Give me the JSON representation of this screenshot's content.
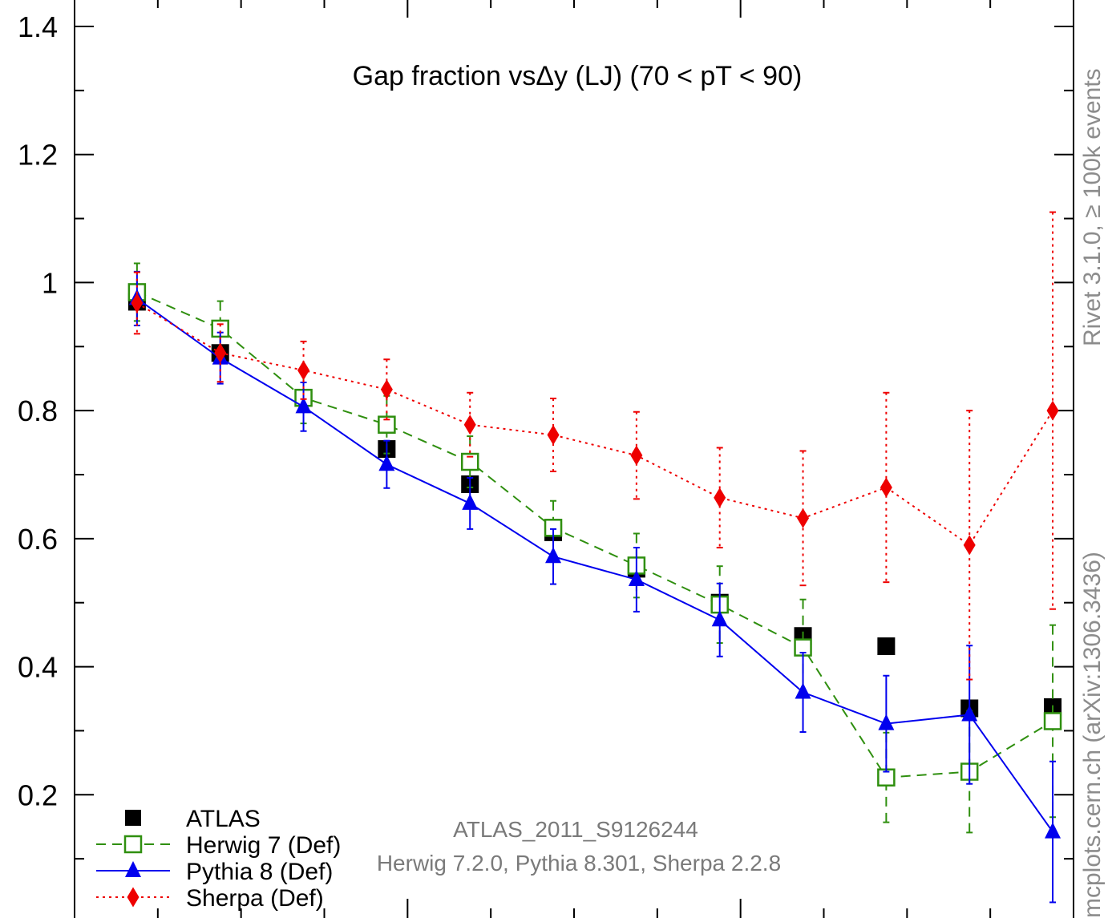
{
  "side_labels": {
    "rivet": "Rivet 3.1.0, ≥ 100k events",
    "mcplots": "mcplots.cern.ch (arXiv:1306.3436)"
  },
  "footer": {
    "analysis": "ATLAS_2011_S9126244",
    "generators": "Herwig 7.2.0, Pythia 8.301, Sherpa 2.2.8"
  },
  "chart_data": {
    "type": "scatter",
    "title": "Gap fraction vsΔy (LJ) (70 < pT <  90)",
    "xlabel": "",
    "ylabel": "",
    "xlim": [
      0,
      12
    ],
    "ylim": [
      0,
      1.4
    ],
    "y_ticks": [
      "0.2",
      "0.4",
      "0.6",
      "0.8",
      "1",
      "1.2",
      "1.4"
    ],
    "legend_position": "bottom-left",
    "x": [
      0.75,
      1.75,
      2.75,
      3.75,
      4.75,
      5.75,
      6.75,
      7.75,
      8.75,
      9.75,
      10.75,
      11.75
    ],
    "series": [
      {
        "name": "ATLAS",
        "style": "data",
        "color": "#000000",
        "marker": "square",
        "values": [
          0.97,
          0.89,
          0.82,
          0.74,
          0.685,
          0.61,
          0.553,
          0.5,
          0.448,
          0.432,
          0.335,
          0.337
        ]
      },
      {
        "name": "Herwig 7 (Def)",
        "style": "dashed",
        "color": "#2f8f0f",
        "marker": "open-square",
        "values": [
          0.985,
          0.928,
          0.82,
          0.778,
          0.72,
          0.617,
          0.558,
          0.497,
          0.43,
          0.227,
          0.236,
          0.315
        ],
        "errors": [
          0.045,
          0.043,
          0.04,
          0.045,
          0.04,
          0.042,
          0.05,
          0.06,
          0.075,
          0.07,
          0.095,
          0.15
        ]
      },
      {
        "name": "Pythia 8 (Def)",
        "style": "solid",
        "color": "#0000ee",
        "marker": "triangle",
        "values": [
          0.975,
          0.882,
          0.806,
          0.716,
          0.655,
          0.572,
          0.536,
          0.473,
          0.36,
          0.311,
          0.325,
          0.142
        ],
        "errors": [
          0.042,
          0.04,
          0.038,
          0.037,
          0.04,
          0.043,
          0.05,
          0.057,
          0.062,
          0.075,
          0.108,
          0.11
        ]
      },
      {
        "name": "Sherpa (Def)",
        "style": "dotted",
        "color": "#ee0000",
        "marker": "diamond",
        "values": [
          0.968,
          0.89,
          0.863,
          0.833,
          0.778,
          0.762,
          0.73,
          0.664,
          0.632,
          0.68,
          0.59,
          0.8
        ],
        "errors": [
          0.048,
          0.045,
          0.045,
          0.047,
          0.05,
          0.057,
          0.068,
          0.078,
          0.105,
          0.148,
          0.21,
          0.31
        ]
      }
    ]
  }
}
